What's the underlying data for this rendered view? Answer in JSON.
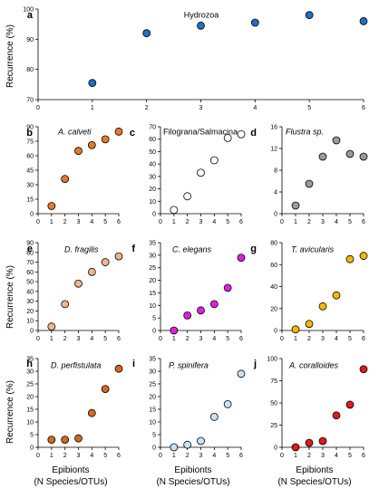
{
  "figure": {
    "ylabel": "Recurrence (%)",
    "xlabel_line1": "Epibionts",
    "xlabel_line2": "(N Species/OTUs)"
  },
  "chart_data": [
    {
      "id": "a",
      "letter": "a",
      "type": "scatter",
      "title": "Hydrozoa",
      "title_italic": false,
      "x": [
        1,
        2,
        3,
        4,
        5,
        6
      ],
      "y": [
        75.5,
        92,
        94.5,
        95.5,
        98,
        96
      ],
      "xlim": [
        0,
        6
      ],
      "ylim": [
        70,
        100
      ],
      "xticks": [
        0,
        1,
        2,
        3,
        4,
        5,
        6
      ],
      "yticks": [
        70,
        80,
        90,
        100
      ],
      "color": "#1f6fc4"
    },
    {
      "id": "b",
      "letter": "b",
      "type": "scatter",
      "title": "A. calveti",
      "title_italic": true,
      "x": [
        1,
        2,
        3,
        4,
        5,
        6
      ],
      "y": [
        8,
        36,
        65,
        71,
        77,
        85
      ],
      "xlim": [
        0,
        6
      ],
      "ylim": [
        0,
        90
      ],
      "xticks": [
        0,
        1,
        2,
        3,
        4,
        5,
        6
      ],
      "yticks": [
        0,
        15,
        30,
        45,
        60,
        75,
        90
      ],
      "color": "#e8782a"
    },
    {
      "id": "c",
      "letter": "c",
      "type": "scatter",
      "title": "Filograna/Salmacina",
      "title_italic": false,
      "x": [
        1,
        2,
        3,
        4,
        5,
        6
      ],
      "y": [
        3,
        14,
        33,
        43,
        61,
        64
      ],
      "xlim": [
        0,
        6
      ],
      "ylim": [
        0,
        70
      ],
      "xticks": [
        0,
        1,
        2,
        3,
        4,
        5,
        6
      ],
      "yticks": [
        0,
        10,
        20,
        30,
        40,
        50,
        60,
        70
      ],
      "color": "#ffffff"
    },
    {
      "id": "d",
      "letter": "d",
      "type": "scatter",
      "title": "Flustra sp.",
      "title_italic": true,
      "x": [
        1,
        2,
        3,
        4,
        5,
        6
      ],
      "y": [
        1.5,
        5.5,
        10.5,
        13.5,
        11,
        10.5
      ],
      "xlim": [
        0,
        6
      ],
      "ylim": [
        0,
        16
      ],
      "xticks": [
        0,
        1,
        2,
        3,
        4,
        5,
        6
      ],
      "yticks": [
        0,
        4,
        8,
        12,
        16
      ],
      "color": "#9a9a9a"
    },
    {
      "id": "e",
      "letter": "e",
      "type": "scatter",
      "title": "D. fragilis",
      "title_italic": true,
      "x": [
        1,
        2,
        3,
        4,
        5,
        6
      ],
      "y": [
        4,
        27,
        48,
        60,
        70,
        76
      ],
      "xlim": [
        0,
        6
      ],
      "ylim": [
        0,
        90
      ],
      "xticks": [
        0,
        1,
        2,
        3,
        4,
        5,
        6
      ],
      "yticks": [
        0,
        10,
        20,
        30,
        40,
        50,
        60,
        70,
        80,
        90
      ],
      "color": "#f2b48c"
    },
    {
      "id": "f",
      "letter": "f",
      "type": "scatter",
      "title": "C. elegans",
      "title_italic": true,
      "x": [
        1,
        2,
        3,
        4,
        5,
        6
      ],
      "y": [
        0,
        6,
        8,
        10.5,
        17,
        29
      ],
      "xlim": [
        0,
        6
      ],
      "ylim": [
        0,
        35
      ],
      "xticks": [
        0,
        1,
        2,
        3,
        4,
        5,
        6
      ],
      "yticks": [
        0,
        5,
        10,
        15,
        20,
        25,
        30,
        35
      ],
      "color": "#e020e0"
    },
    {
      "id": "g",
      "letter": "g",
      "type": "scatter",
      "title": "T. avicularis",
      "title_italic": true,
      "x": [
        1,
        2,
        3,
        4,
        5,
        6
      ],
      "y": [
        1,
        6,
        22,
        32,
        65,
        68
      ],
      "xlim": [
        0,
        6
      ],
      "ylim": [
        0,
        80
      ],
      "xticks": [
        0,
        1,
        2,
        3,
        4,
        5,
        6
      ],
      "yticks": [
        0,
        20,
        40,
        60,
        80
      ],
      "color": "#f5b800"
    },
    {
      "id": "h",
      "letter": "h",
      "type": "scatter",
      "title": "D. perfistulata",
      "title_italic": true,
      "x": [
        1,
        2,
        3,
        4,
        5,
        6
      ],
      "y": [
        3,
        3,
        3.5,
        13.5,
        23,
        31
      ],
      "xlim": [
        0,
        6
      ],
      "ylim": [
        0,
        35
      ],
      "xticks": [
        0,
        1,
        2,
        3,
        4,
        5,
        6
      ],
      "yticks": [
        0,
        5,
        10,
        15,
        20,
        25,
        30,
        35
      ],
      "color": "#d2691e"
    },
    {
      "id": "i",
      "letter": "i",
      "type": "scatter",
      "title": "P. spinifera",
      "title_italic": true,
      "x": [
        1,
        2,
        3,
        4,
        5,
        6
      ],
      "y": [
        0,
        1,
        2.5,
        12,
        17,
        29
      ],
      "xlim": [
        0,
        6
      ],
      "ylim": [
        0,
        35
      ],
      "xticks": [
        0,
        1,
        2,
        3,
        4,
        5,
        6
      ],
      "yticks": [
        0,
        5,
        10,
        15,
        20,
        25,
        30,
        35
      ],
      "color": "#c6e2f5"
    },
    {
      "id": "j",
      "letter": "j",
      "type": "scatter",
      "title": "A. coralloides",
      "title_italic": true,
      "x": [
        1,
        2,
        3,
        4,
        5,
        6
      ],
      "y": [
        0,
        5,
        7,
        36,
        48,
        88
      ],
      "xlim": [
        0,
        6
      ],
      "ylim": [
        0,
        100
      ],
      "xticks": [
        0,
        1,
        2,
        3,
        4,
        5,
        6
      ],
      "yticks": [
        0,
        25,
        50,
        75,
        100
      ],
      "color": "#dd1c1c"
    }
  ]
}
